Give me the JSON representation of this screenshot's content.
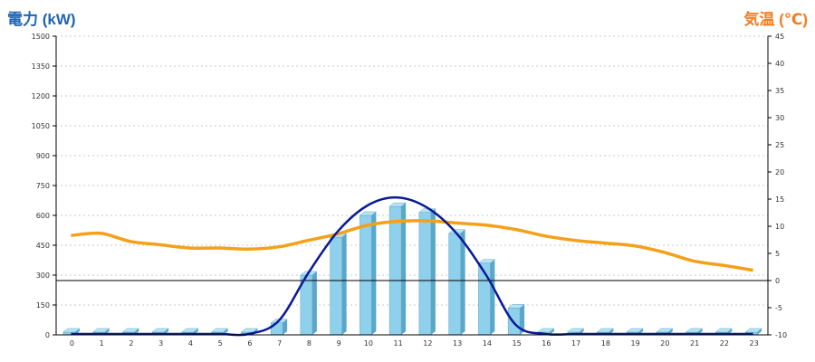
{
  "colors": {
    "power_title": "#1f64b4",
    "temp_title": "#f07d1e",
    "bar_front": "#8fd0ec",
    "bar_side": "#5aa7c8",
    "bar_top": "#b9e4f6",
    "power_line": "#0a1a96",
    "temp_line": "#f5a01a",
    "grid": "#c8c8c8",
    "axis": "#000000"
  },
  "chart_data": {
    "type": "bar",
    "title": "",
    "categories": [
      "0",
      "1",
      "2",
      "3",
      "4",
      "5",
      "6",
      "7",
      "8",
      "9",
      "10",
      "11",
      "12",
      "13",
      "14",
      "15",
      "16",
      "17",
      "18",
      "19",
      "20",
      "21",
      "22",
      "23"
    ],
    "series": [
      {
        "kind": "bar",
        "axis": "left",
        "values": [
          0,
          0,
          0,
          0,
          0,
          0,
          0,
          60,
          300,
          490,
          600,
          645,
          615,
          510,
          360,
          135,
          0,
          0,
          0,
          0,
          0,
          0,
          0,
          0
        ]
      },
      {
        "kind": "smooth-line",
        "axis": "left",
        "values": [
          0,
          0,
          0,
          0,
          0,
          0,
          0,
          70,
          310,
          520,
          650,
          690,
          640,
          510,
          300,
          50,
          0,
          0,
          0,
          0,
          0,
          0,
          0,
          0
        ]
      },
      {
        "kind": "line",
        "axis": "right",
        "values": [
          8.3,
          8.7,
          7.2,
          6.6,
          6.0,
          6.0,
          5.8,
          6.2,
          7.4,
          8.6,
          10.2,
          10.9,
          11.0,
          10.6,
          10.2,
          9.4,
          8.2,
          7.4,
          6.9,
          6.4,
          5.2,
          3.6,
          2.8,
          1.9
        ]
      }
    ],
    "left_axis": {
      "label": "電力 (kW)",
      "min": 0,
      "max": 1500,
      "ticks": [
        "0",
        "150",
        "300",
        "450",
        "600",
        "750",
        "900",
        "1050",
        "1200",
        "1350",
        "1500"
      ]
    },
    "right_axis": {
      "label": "気温 (℃)",
      "min": -10,
      "max": 45,
      "ticks": [
        "-10",
        "-5",
        "0",
        "5",
        "10",
        "15",
        "20",
        "25",
        "30",
        "35",
        "40",
        "45"
      ]
    },
    "zero_line_temp": 0,
    "grid": true,
    "legend": "none"
  }
}
